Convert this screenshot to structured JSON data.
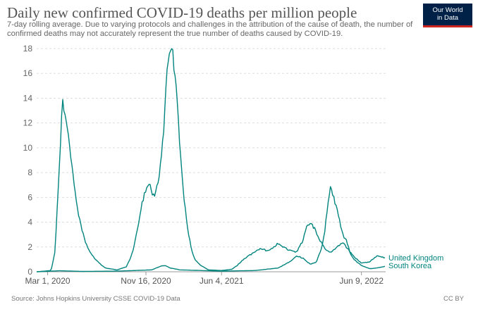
{
  "header": {
    "title": "Daily new confirmed COVID-19 deaths per million people",
    "subtitle": "7-day rolling average. Due to varying protocols and challenges in the attribution of the cause of death, the number of confirmed deaths may not accurately represent the true number of deaths caused by COVID-19."
  },
  "logo": {
    "line1": "Our World",
    "line2": "in Data",
    "bg_color": "#002147",
    "accent_color": "#ce261e"
  },
  "footer": {
    "source": "Source: Johns Hopkins University CSSE COVID-19 Data",
    "license": "CC BY"
  },
  "chart_data": {
    "type": "line",
    "title": "Daily new confirmed COVID-19 deaths per million people",
    "xlabel": "",
    "ylabel": "",
    "ylim": [
      0,
      18
    ],
    "yticks": [
      0,
      2,
      4,
      6,
      8,
      10,
      12,
      14,
      16,
      18
    ],
    "x_tick_labels": [
      "Mar 1, 2020",
      "Nov 16, 2020",
      "Jun 4, 2021",
      "Jun 9, 2022"
    ],
    "x_tick_dates": [
      "2020-03-01",
      "2020-11-16",
      "2021-06-04",
      "2022-06-09"
    ],
    "xlim": [
      "2020-02-01",
      "2022-08-12"
    ],
    "grid": "horizontal dashed",
    "line_color": "#00847e",
    "series": [
      {
        "name": "United Kingdom",
        "points": [
          [
            "2020-02-01",
            0
          ],
          [
            "2020-03-10",
            0.1
          ],
          [
            "2020-03-20",
            1.5
          ],
          [
            "2020-03-28",
            6
          ],
          [
            "2020-04-03",
            10
          ],
          [
            "2020-04-10",
            13.8
          ],
          [
            "2020-04-14",
            13.3
          ],
          [
            "2020-04-20",
            12.2
          ],
          [
            "2020-04-28",
            10.2
          ],
          [
            "2020-05-06",
            8
          ],
          [
            "2020-05-14",
            6
          ],
          [
            "2020-05-22",
            4.5
          ],
          [
            "2020-05-30",
            3.5
          ],
          [
            "2020-06-08",
            2.5
          ],
          [
            "2020-06-18",
            1.8
          ],
          [
            "2020-06-30",
            1.2
          ],
          [
            "2020-07-15",
            0.7
          ],
          [
            "2020-08-01",
            0.3
          ],
          [
            "2020-09-01",
            0.15
          ],
          [
            "2020-09-25",
            0.4
          ],
          [
            "2020-10-05",
            1
          ],
          [
            "2020-10-15",
            2
          ],
          [
            "2020-10-25",
            3.5
          ],
          [
            "2020-11-05",
            5.5
          ],
          [
            "2020-11-16",
            6.6
          ],
          [
            "2020-11-22",
            7
          ],
          [
            "2020-11-28",
            6.8
          ],
          [
            "2020-12-05",
            6.2
          ],
          [
            "2020-12-12",
            6.3
          ],
          [
            "2020-12-20",
            7.5
          ],
          [
            "2020-12-28",
            9.5
          ],
          [
            "2021-01-03",
            12
          ],
          [
            "2021-01-10",
            15.5
          ],
          [
            "2021-01-17",
            17.6
          ],
          [
            "2021-01-22",
            18.2
          ],
          [
            "2021-01-27",
            17.5
          ],
          [
            "2021-02-03",
            15
          ],
          [
            "2021-02-10",
            12
          ],
          [
            "2021-02-18",
            8.5
          ],
          [
            "2021-02-26",
            5.5
          ],
          [
            "2021-03-06",
            3.5
          ],
          [
            "2021-03-15",
            2
          ],
          [
            "2021-03-25",
            1
          ],
          [
            "2021-04-10",
            0.5
          ],
          [
            "2021-05-01",
            0.15
          ],
          [
            "2021-06-04",
            0.1
          ],
          [
            "2021-07-01",
            0.2
          ],
          [
            "2021-07-15",
            0.5
          ],
          [
            "2021-08-01",
            1
          ],
          [
            "2021-08-15",
            1.3
          ],
          [
            "2021-09-01",
            1.6
          ],
          [
            "2021-09-15",
            1.9
          ],
          [
            "2021-10-01",
            1.7
          ],
          [
            "2021-10-15",
            1.9
          ],
          [
            "2021-11-01",
            2.3
          ],
          [
            "2021-11-15",
            2.0
          ],
          [
            "2021-12-01",
            1.7
          ],
          [
            "2021-12-20",
            1.6
          ],
          [
            "2022-01-05",
            2.5
          ],
          [
            "2022-01-15",
            3.6
          ],
          [
            "2022-01-25",
            3.9
          ],
          [
            "2022-02-05",
            3.5
          ],
          [
            "2022-02-20",
            2.5
          ],
          [
            "2022-03-05",
            1.8
          ],
          [
            "2022-03-20",
            1.6
          ],
          [
            "2022-04-05",
            2
          ],
          [
            "2022-04-20",
            2.4
          ],
          [
            "2022-05-05",
            1.8
          ],
          [
            "2022-05-20",
            1.2
          ],
          [
            "2022-06-09",
            0.7
          ],
          [
            "2022-07-01",
            0.8
          ],
          [
            "2022-07-20",
            1.3
          ],
          [
            "2022-08-12",
            1.1
          ]
        ]
      },
      {
        "name": "South Korea",
        "points": [
          [
            "2020-02-01",
            0
          ],
          [
            "2020-03-10",
            0.05
          ],
          [
            "2020-04-01",
            0.08
          ],
          [
            "2020-06-01",
            0.03
          ],
          [
            "2020-09-01",
            0.05
          ],
          [
            "2020-12-01",
            0.15
          ],
          [
            "2020-12-25",
            0.45
          ],
          [
            "2021-01-05",
            0.5
          ],
          [
            "2021-01-20",
            0.3
          ],
          [
            "2021-02-15",
            0.15
          ],
          [
            "2021-06-04",
            0.05
          ],
          [
            "2021-09-01",
            0.1
          ],
          [
            "2021-11-01",
            0.3
          ],
          [
            "2021-12-01",
            0.8
          ],
          [
            "2021-12-20",
            1.3
          ],
          [
            "2022-01-05",
            1.1
          ],
          [
            "2022-01-25",
            0.6
          ],
          [
            "2022-02-10",
            0.8
          ],
          [
            "2022-02-25",
            2
          ],
          [
            "2022-03-05",
            3.5
          ],
          [
            "2022-03-12",
            5.5
          ],
          [
            "2022-03-18",
            6.7
          ],
          [
            "2022-03-25",
            6.3
          ],
          [
            "2022-04-01",
            5.5
          ],
          [
            "2022-04-10",
            4.5
          ],
          [
            "2022-04-20",
            3
          ],
          [
            "2022-05-01",
            2.5
          ],
          [
            "2022-05-10",
            1.5
          ],
          [
            "2022-05-20",
            1
          ],
          [
            "2022-06-09",
            0.5
          ],
          [
            "2022-07-01",
            0.25
          ],
          [
            "2022-07-20",
            0.3
          ],
          [
            "2022-08-12",
            0.45
          ]
        ]
      }
    ]
  }
}
